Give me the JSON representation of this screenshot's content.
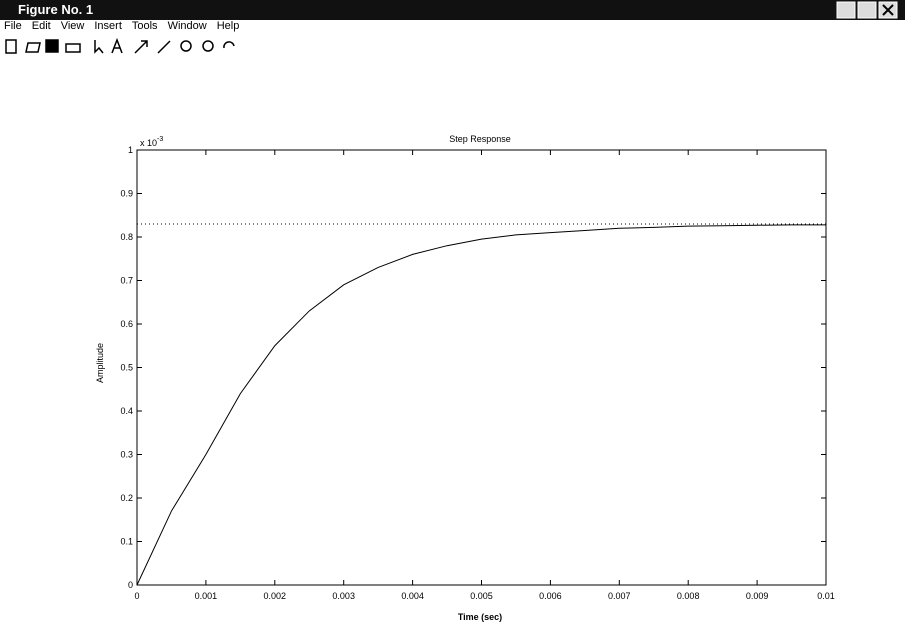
{
  "window": {
    "title": "Figure No. 1"
  },
  "menu": [
    "File",
    "Edit",
    "View",
    "Insert",
    "Tools",
    "Window",
    "Help"
  ],
  "chart_data": {
    "type": "line",
    "title": "Step Response",
    "xlabel": "Time (sec)",
    "ylabel": "Amplitude",
    "y_multiplier": {
      "base": "x 10",
      "exponent": "-3"
    },
    "x": [
      0,
      0.0005,
      0.001,
      0.0015,
      0.002,
      0.0025,
      0.003,
      0.0035,
      0.004,
      0.0045,
      0.005,
      0.0055,
      0.006,
      0.0065,
      0.007,
      0.0075,
      0.008,
      0.0085,
      0.009,
      0.0095,
      0.01
    ],
    "series": [
      {
        "color": "#000000",
        "values": [
          0,
          0.17,
          0.3,
          0.44,
          0.55,
          0.63,
          0.69,
          0.73,
          0.76,
          0.78,
          0.795,
          0.805,
          0.81,
          0.815,
          0.82,
          0.822,
          0.825,
          0.826,
          0.827,
          0.828,
          0.828
        ]
      }
    ],
    "steady_state": 0.83,
    "xlim": [
      0,
      0.01
    ],
    "ylim": [
      0,
      1
    ],
    "xticks": [
      0,
      0.001,
      0.002,
      0.003,
      0.004,
      0.005,
      0.006,
      0.007,
      0.008,
      0.009,
      0.01
    ],
    "yticks": [
      0,
      0.1,
      0.2,
      0.3,
      0.4,
      0.5,
      0.6,
      0.7,
      0.8,
      0.9,
      1
    ]
  }
}
